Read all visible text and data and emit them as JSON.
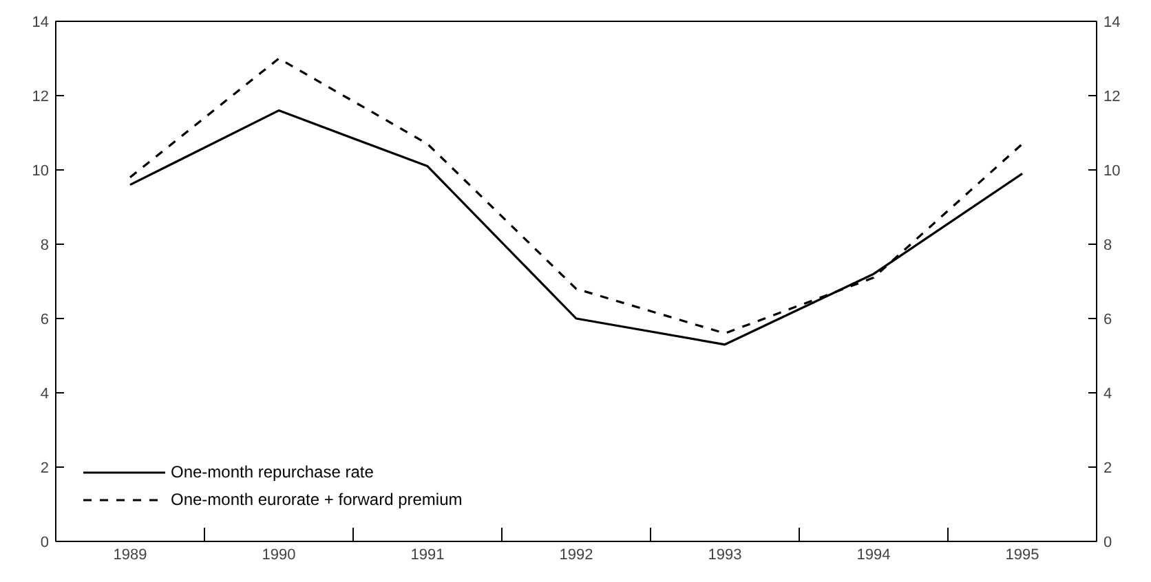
{
  "chart_data": {
    "type": "line",
    "categories": [
      "1989",
      "1990",
      "1991",
      "1992",
      "1993",
      "1994",
      "1995"
    ],
    "series": [
      {
        "name": "One-month repurchase rate",
        "color": "#000000",
        "values": [
          9.6,
          11.6,
          10.1,
          6.0,
          5.3,
          7.2,
          9.9
        ],
        "line_style": "solid"
      },
      {
        "name": "One-month eurorate + forward premium",
        "color": "#000000",
        "values": [
          9.8,
          13.0,
          10.7,
          6.8,
          5.6,
          7.1,
          10.7
        ],
        "line_style": "dashed"
      }
    ],
    "ylim": [
      0,
      14
    ],
    "yticks": [
      0,
      2,
      4,
      6,
      8,
      10,
      12,
      14
    ],
    "y2lim": [
      0,
      14
    ],
    "y2ticks": [
      0,
      2,
      4,
      6,
      8,
      10,
      12,
      14
    ],
    "legend": "bottom left",
    "grid": false,
    "marker": "none"
  }
}
